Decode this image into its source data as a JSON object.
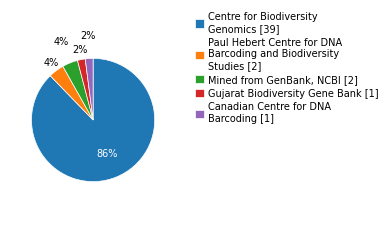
{
  "chart_data": {
    "type": "pie",
    "categories": [
      "Centre for Biodiversity\nGenomics [39]",
      "Paul Hebert Centre for DNA\nBarcoding and Biodiversity\nStudies [2]",
      "Mined from GenBank, NCBI [2]",
      "Gujarat Biodiversity Gene Bank [1]",
      "Canadian Centre for DNA\nBarcoding [1]"
    ],
    "values": [
      86,
      4,
      4,
      2,
      2
    ],
    "value_labels": [
      "86%",
      "4%",
      "4%",
      "2%",
      "2%"
    ],
    "data_labels": true,
    "legend": "upper left"
  }
}
